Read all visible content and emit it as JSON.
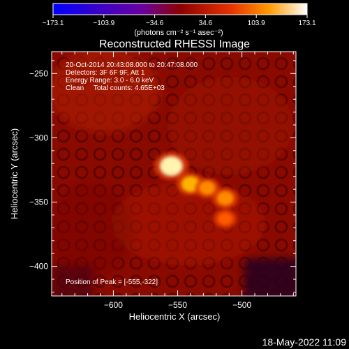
{
  "colorbar": {
    "ticks": [
      "-173.1",
      "-103.9",
      "-34.6",
      "34.6",
      "103.9",
      "173.1"
    ],
    "unit_label": "(photons cm⁻² s⁻¹ asec⁻²)"
  },
  "chart_data": {
    "type": "heatmap",
    "title": "Reconstructed RHESSI Image",
    "xlabel": "Heliocentric X (arcsec)",
    "ylabel": "Heliocentric Y (arcsec)",
    "xlim": [
      -648,
      -458
    ],
    "ylim": [
      -423,
      -233
    ],
    "x_ticks": [
      -600,
      -550,
      -500
    ],
    "y_ticks": [
      -250,
      -300,
      -350,
      -400
    ],
    "x_tick_labels": [
      "−600",
      "−550",
      "−500"
    ],
    "y_tick_labels": [
      "−250",
      "−300",
      "−350",
      "−400"
    ],
    "colorbar_range": [
      -173.1,
      173.1
    ],
    "annotations": [
      "20-Oct-2014 20:43:08.000 to 20:47:08.000",
      "Detectors: 3F 6F 9F, Att 1",
      "Energy Range: 3.0 - 6.0 keV",
      "Clean     Total counts: 4.65E+03"
    ],
    "peak_label": "Position of Peak = [-555,-322]",
    "peak": {
      "x": -555,
      "y": -322,
      "value": 173.1
    },
    "sources": [
      {
        "x": -555,
        "y": -322,
        "value": 173.1
      },
      {
        "x": -540,
        "y": -336,
        "value": 120
      },
      {
        "x": -527,
        "y": -339,
        "value": 95
      },
      {
        "x": -513,
        "y": -347,
        "value": 100
      },
      {
        "x": -513,
        "y": -363,
        "value": 80
      }
    ],
    "grid": false
  },
  "footer": {
    "timestamp": "18-May-2022 11:09"
  }
}
